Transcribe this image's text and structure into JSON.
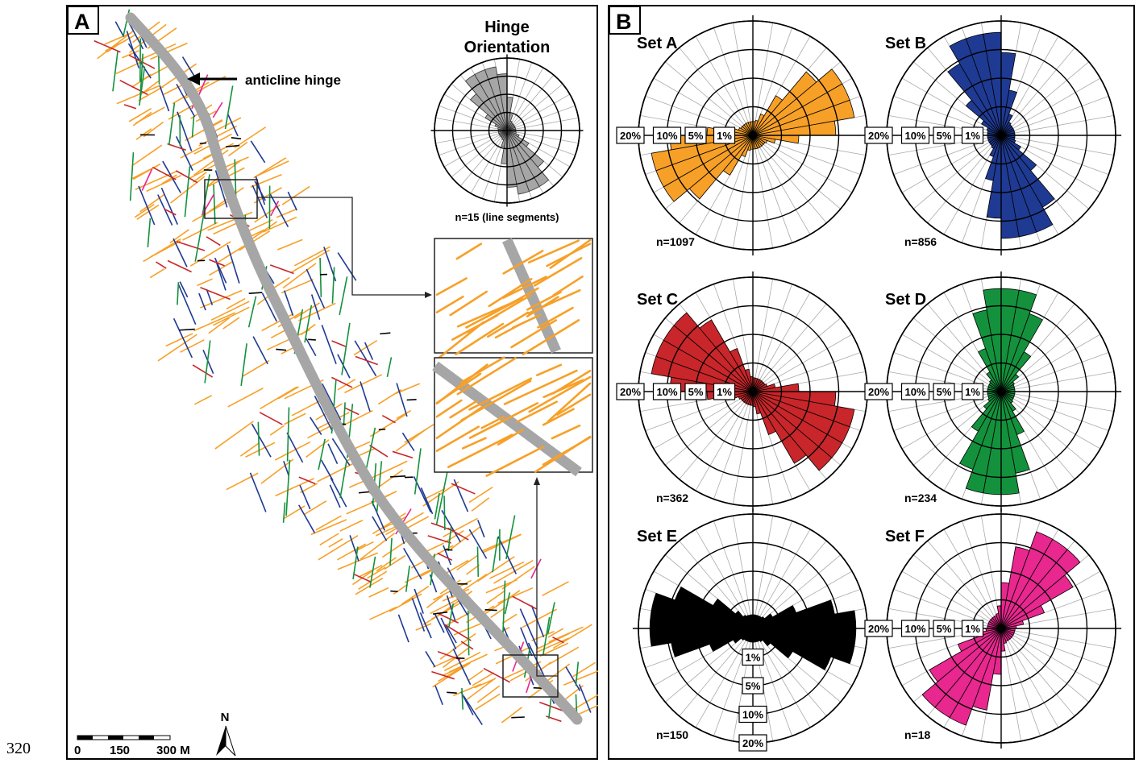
{
  "page_number": "320",
  "map_panel": {
    "letter": "A",
    "hinge_callout": "anticline hinge",
    "inset_title_line1": "Hinge",
    "inset_title_line2": "Orientation",
    "inset_count": "n=15 (line segments)",
    "north_label": "N",
    "scale_ticks": [
      "0",
      "150",
      "300 M"
    ],
    "hinge_bearing_deg": 152,
    "colors": {
      "setA": "#f7a028",
      "setB": "#1f3a93",
      "setC": "#c8262a",
      "setD": "#14913c",
      "setE": "#000000",
      "setF": "#e8278f",
      "hinge": "#a6a6a6"
    }
  },
  "rose_panel": {
    "letter": "B",
    "ring_labels": [
      "20%",
      "10%",
      "5%",
      "1%"
    ],
    "roses": [
      {
        "set": "Set A",
        "n": "n=1097",
        "color": "#f7a028",
        "peaks_deg": [
          50,
          60,
          70
        ]
      },
      {
        "set": "Set B",
        "n": "n=856",
        "color": "#1f3a93",
        "peaks_deg": [
          150,
          160,
          170
        ]
      },
      {
        "set": "Set C",
        "n": "n=362",
        "color": "#c8262a",
        "peaks_deg": [
          100,
          110,
          120,
          130
        ]
      },
      {
        "set": "Set D",
        "n": "n=234",
        "color": "#14913c",
        "peaks_deg": [
          0,
          10,
          170
        ]
      },
      {
        "set": "Set E",
        "n": "n=150",
        "color": "#000000",
        "peaks_deg": [
          80,
          90,
          100
        ]
      },
      {
        "set": "Set F",
        "n": "n=18",
        "color": "#e8278f",
        "peaks_deg": [
          20,
          30,
          40
        ]
      }
    ]
  }
}
